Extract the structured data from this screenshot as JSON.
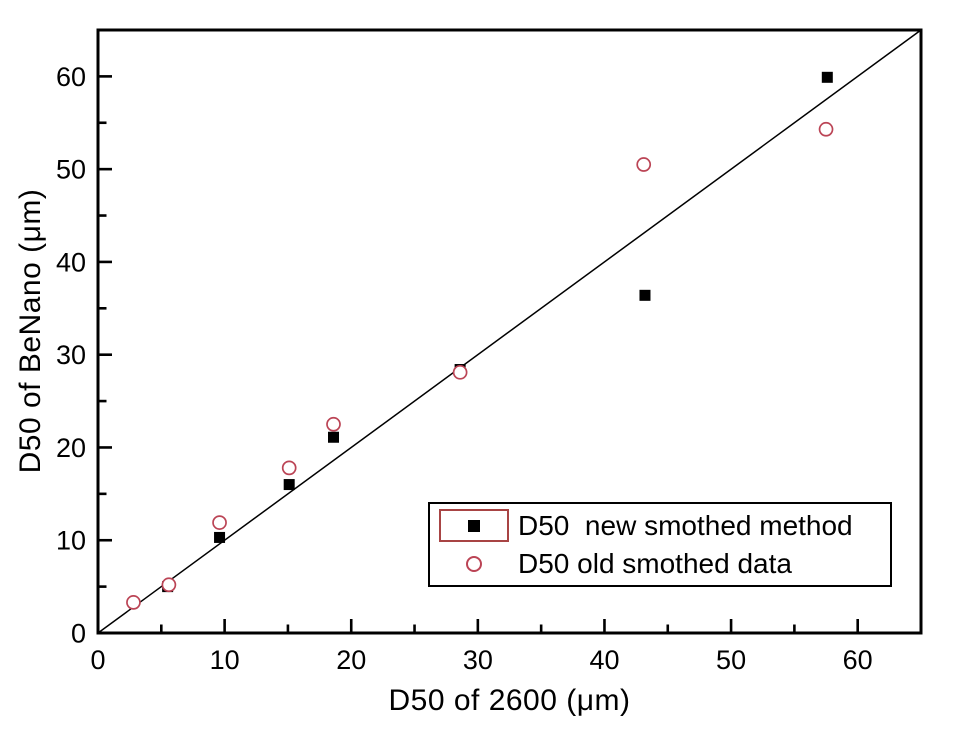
{
  "figure": {
    "background_color": "#ffffff",
    "frame_color": "#000000"
  },
  "chart_data": {
    "type": "scatter",
    "title": "",
    "xlabel": "D50 of 2600 (μm)",
    "ylabel": "D50 of BeNano (μm)",
    "xlim": [
      0,
      65
    ],
    "ylim": [
      0,
      65
    ],
    "x_ticks": [
      0,
      10,
      20,
      30,
      40,
      50,
      60
    ],
    "y_ticks": [
      0,
      10,
      20,
      30,
      40,
      50,
      60
    ],
    "minor_tick_step": 5,
    "grid": false,
    "legend_position": "lower-right",
    "legend_border": true,
    "legend_selection_box_color": "#a84444",
    "reference_line": {
      "type": "identity",
      "from": [
        0,
        0
      ],
      "to": [
        65,
        65
      ],
      "color": "#000000"
    },
    "series": [
      {
        "name": "D50  new smothed method",
        "marker": "filled-square",
        "color": "#000000",
        "points": [
          [
            5.5,
            5.0
          ],
          [
            9.6,
            10.3
          ],
          [
            15.1,
            16.0
          ],
          [
            18.6,
            21.1
          ],
          [
            28.6,
            28.4
          ],
          [
            43.2,
            36.4
          ],
          [
            57.6,
            59.9
          ]
        ]
      },
      {
        "name": "D50 old smothed data",
        "marker": "open-circle",
        "color": "#bb4455",
        "points": [
          [
            2.8,
            3.3
          ],
          [
            5.6,
            5.2
          ],
          [
            9.6,
            11.9
          ],
          [
            15.1,
            17.8
          ],
          [
            18.6,
            22.5
          ],
          [
            28.6,
            28.1
          ],
          [
            43.1,
            50.5
          ],
          [
            57.5,
            54.3
          ]
        ]
      }
    ]
  }
}
